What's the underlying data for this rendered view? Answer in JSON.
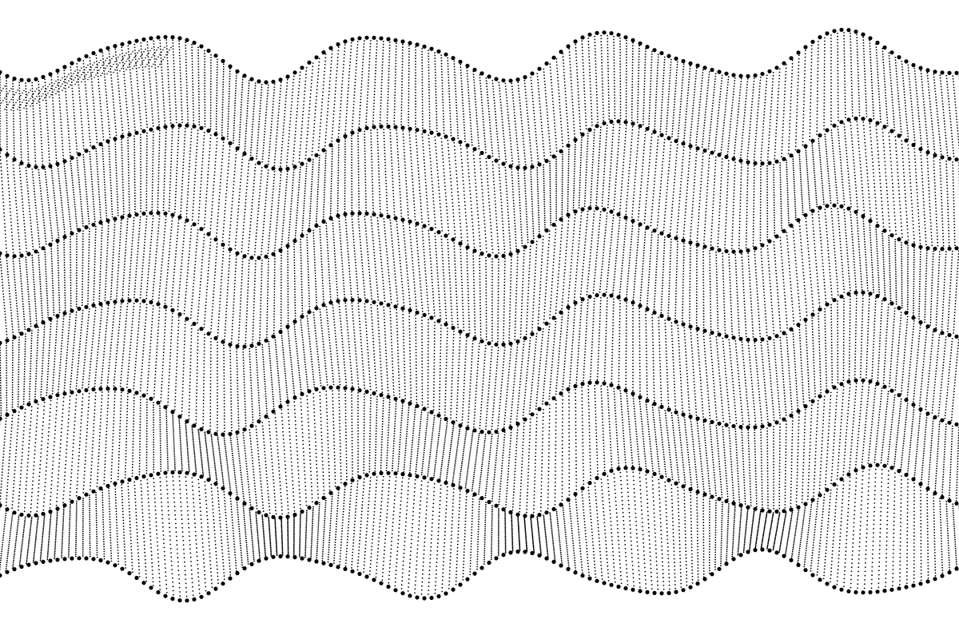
{
  "artwork": {
    "background_color": "#ffffff",
    "dot_color": "#000000",
    "wave_count": 7,
    "columns_per_band": 150,
    "dots_per_column": 30
  }
}
